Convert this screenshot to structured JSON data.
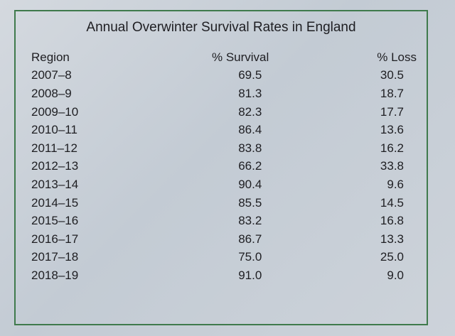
{
  "table": {
    "title": "Annual Overwinter Survival Rates in England",
    "header": [
      "Region",
      "% Survival",
      "% Loss"
    ],
    "rows": [
      [
        "2007–8",
        "69.5",
        "30.5"
      ],
      [
        "2008–9",
        "81.3",
        "18.7"
      ],
      [
        "2009–10",
        "82.3",
        "17.7"
      ],
      [
        "2010–11",
        "86.4",
        "13.6"
      ],
      [
        "2011–12",
        "83.8",
        "16.2"
      ],
      [
        "2012–13",
        "66.2",
        "33.8"
      ],
      [
        "2013–14",
        "90.4",
        "9.6"
      ],
      [
        "2014–15",
        "85.5",
        "14.5"
      ],
      [
        "2015–16",
        "83.2",
        "16.8"
      ],
      [
        "2016–17",
        "86.7",
        "13.3"
      ],
      [
        "2017–18",
        "75.0",
        "25.0"
      ],
      [
        "2018–19",
        "91.0",
        "9.0"
      ]
    ]
  }
}
